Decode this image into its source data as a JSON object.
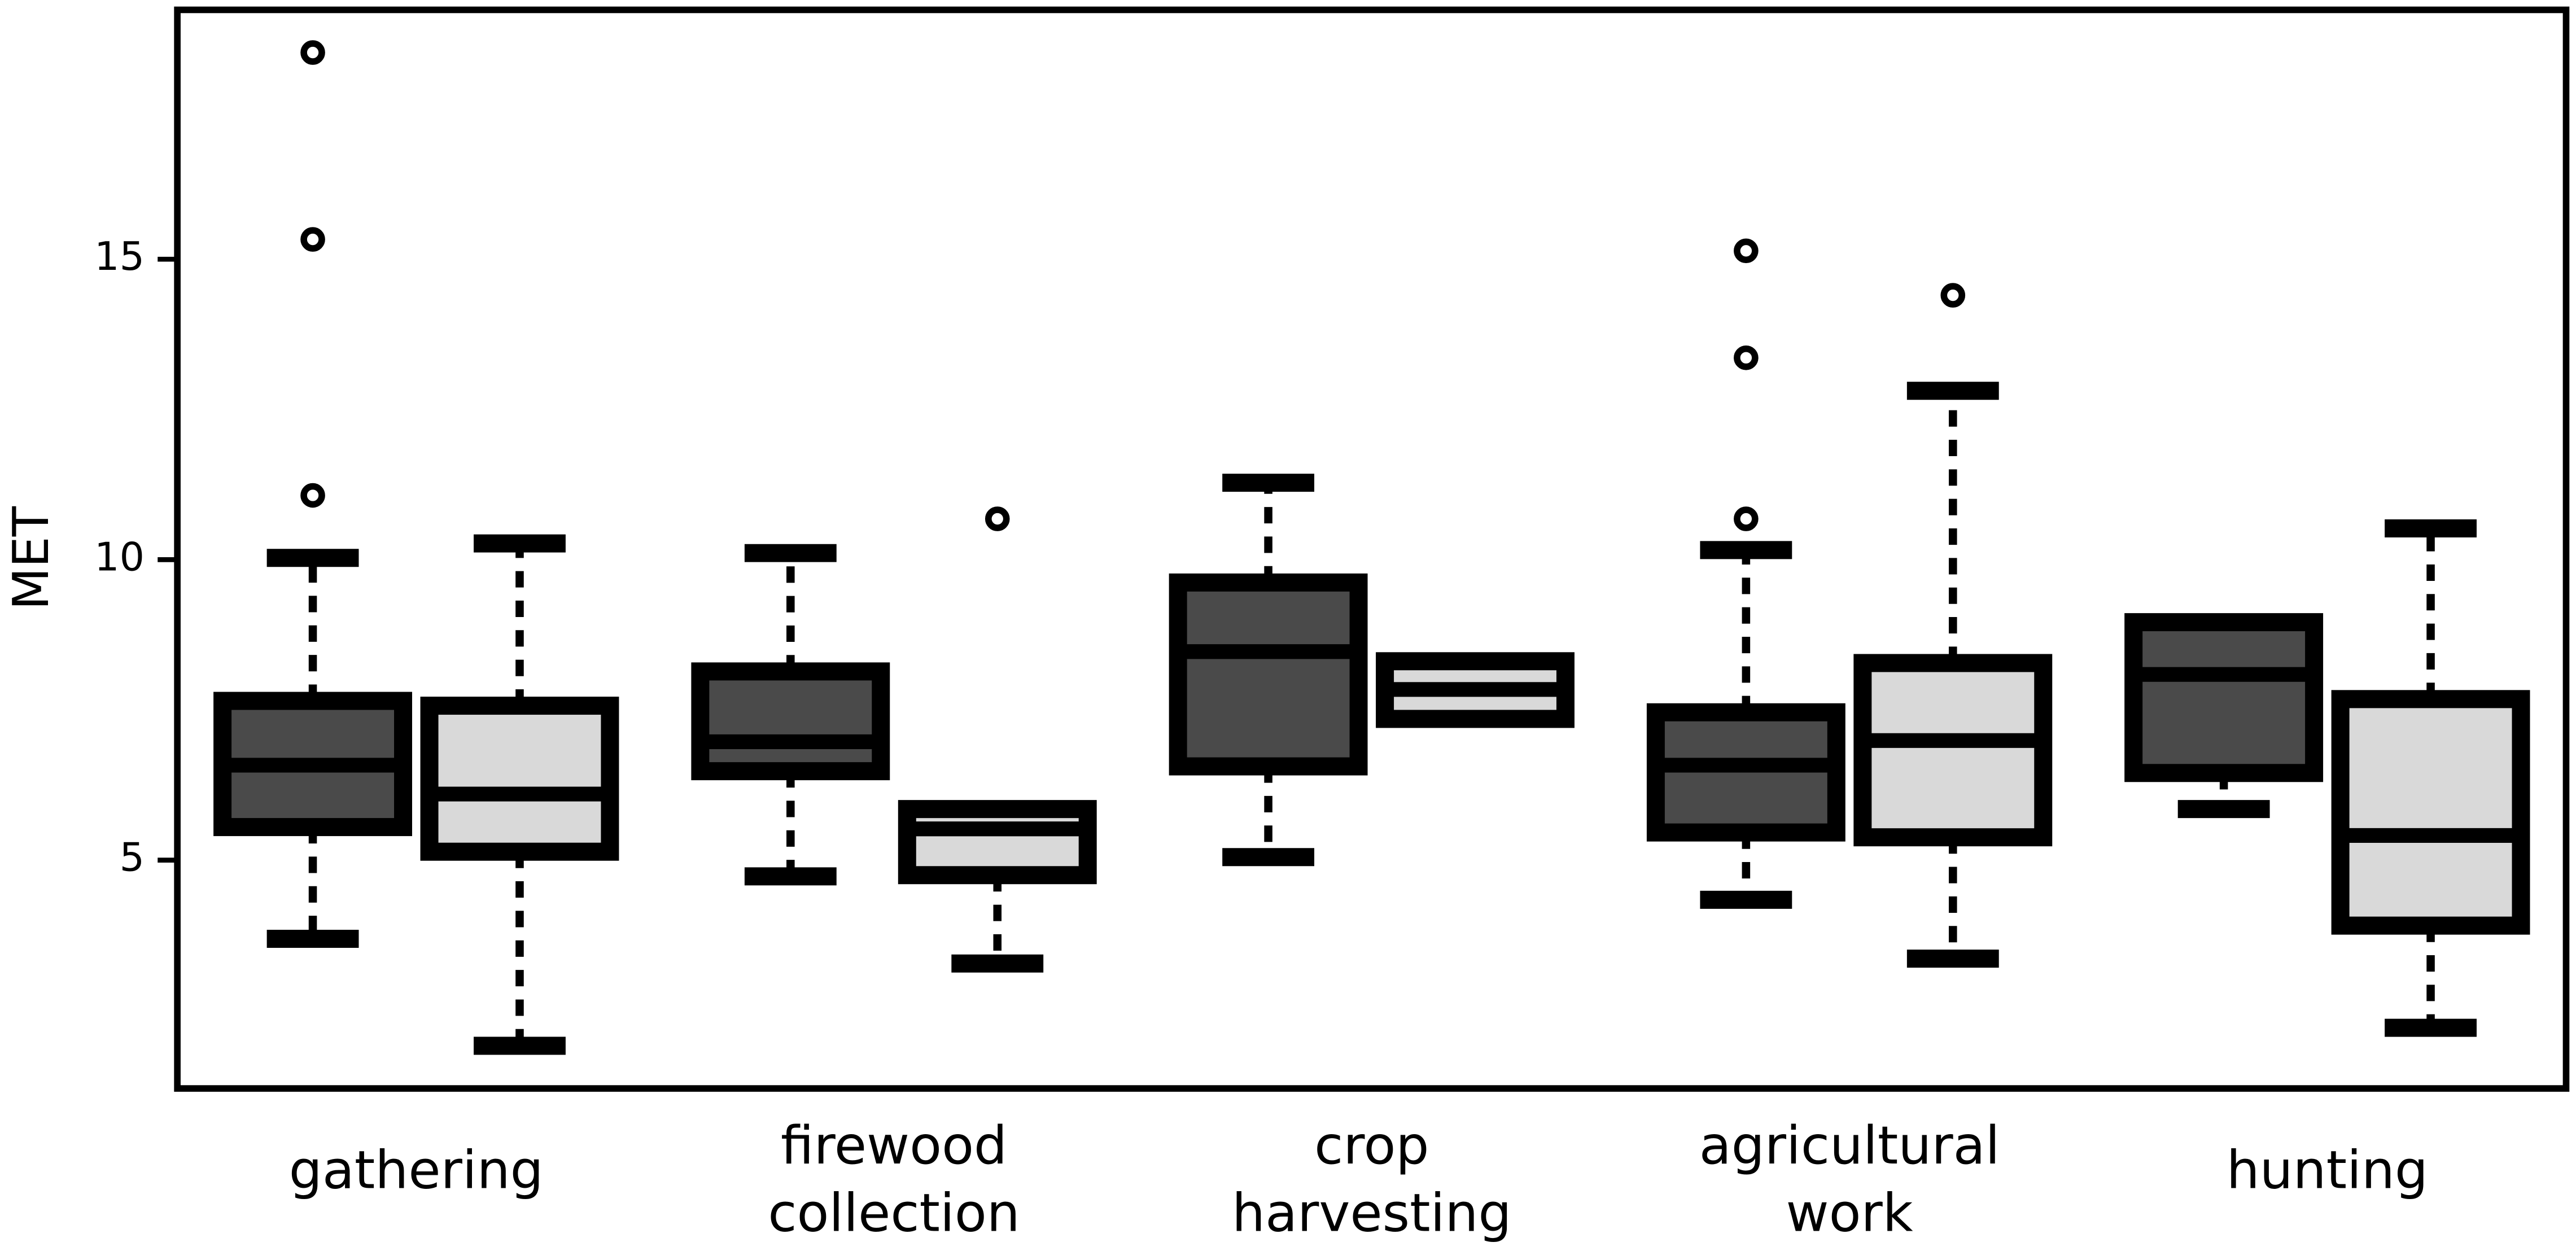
{
  "chart_data": {
    "type": "box",
    "ylabel": "MET",
    "categories": [
      [
        "gathering"
      ],
      [
        "firewood",
        "collection"
      ],
      [
        "crop",
        "harvesting"
      ],
      [
        "agricultural",
        "work"
      ],
      [
        "hunting"
      ]
    ],
    "ylim": [
      1.2,
      19.15
    ],
    "yticks": [
      5,
      10,
      15
    ],
    "series": [
      {
        "color": "#4a4a4a",
        "boxes": [
          {
            "whislo": 3.69,
            "q1": 5.55,
            "med": 6.58,
            "q3": 7.65,
            "whishi": 10.03,
            "fliers": [
              18.44,
              15.33,
              11.07
            ]
          },
          {
            "whislo": 4.73,
            "q1": 6.48,
            "med": 6.97,
            "q3": 8.14,
            "whishi": 10.11,
            "fliers": []
          },
          {
            "whislo": 5.05,
            "q1": 6.56,
            "med": 8.47,
            "q3": 9.62,
            "whishi": 11.28,
            "fliers": []
          },
          {
            "whislo": 4.34,
            "q1": 5.46,
            "med": 6.58,
            "q3": 7.46,
            "whishi": 10.16,
            "fliers": [
              15.14,
              13.36,
              10.68
            ]
          },
          {
            "whislo": 5.85,
            "q1": 6.45,
            "med": 8.09,
            "q3": 8.96,
            "whishi": 8.96,
            "fliers": []
          }
        ]
      },
      {
        "color": "#d9d9d9",
        "boxes": [
          {
            "whislo": 1.91,
            "q1": 5.14,
            "med": 6.1,
            "q3": 7.57,
            "whishi": 10.27,
            "fliers": []
          },
          {
            "whislo": 3.28,
            "q1": 4.75,
            "med": 5.52,
            "q3": 5.85,
            "whishi": 5.85,
            "fliers": [
              10.68
            ]
          },
          {
            "whislo": 7.35,
            "q1": 7.35,
            "med": 7.84,
            "q3": 8.31,
            "whishi": 8.31,
            "fliers": []
          },
          {
            "whislo": 3.36,
            "q1": 5.38,
            "med": 6.99,
            "q3": 8.28,
            "whishi": 12.81,
            "fliers": [
              14.4
            ]
          },
          {
            "whislo": 2.21,
            "q1": 3.91,
            "med": 5.41,
            "q3": 7.68,
            "whishi": 10.52,
            "fliers": []
          }
        ]
      }
    ]
  }
}
